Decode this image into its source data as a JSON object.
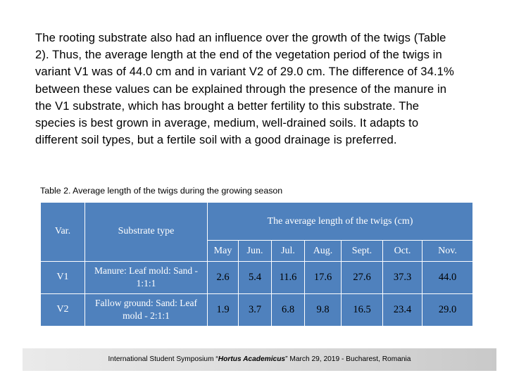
{
  "paragraph": "The rooting substrate also had an influence over the growth of the twigs (Table 2). Thus, the average length at the end of the vegetation period of the twigs in variant V1 was of 44.0 cm and in variant V2 of 29.0 cm. The difference of 34.1% between these values can be explained through the presence of the manure in the V1 substrate, which has brought a better fertility to this substrate. The species is best grown in average, medium, well-drained soils. It adapts to different soil types, but a fertile soil with a good drainage is preferred.",
  "table": {
    "caption": "Table 2. Average length of the twigs during the growing season",
    "col_var": "Var.",
    "col_substrate": "Substrate type",
    "col_group": "The average length of the twigs (cm)",
    "months": [
      "May",
      "Jun.",
      "Jul.",
      "Aug.",
      "Sept.",
      "Oct.",
      "Nov."
    ],
    "rows": [
      {
        "var": "V1",
        "substrate": "Manure: Leaf mold: Sand - 1:1:1",
        "values": [
          "2.6",
          "5.4",
          "11.6",
          "17.6",
          "27.6",
          "37.3",
          "44.0"
        ]
      },
      {
        "var": "V2",
        "substrate": "Fallow ground: Sand: Leaf mold - 2:1:1",
        "values": [
          "1.9",
          "3.7",
          "6.8",
          "9.8",
          "16.5",
          "23.4",
          "29.0"
        ]
      }
    ],
    "header_color": "#4f81bd"
  },
  "footer": {
    "prefix": "International Student Symposium “",
    "event": "Hortus Academicus",
    "suffix": "” March 29, 2019 - Bucharest, Romania"
  }
}
